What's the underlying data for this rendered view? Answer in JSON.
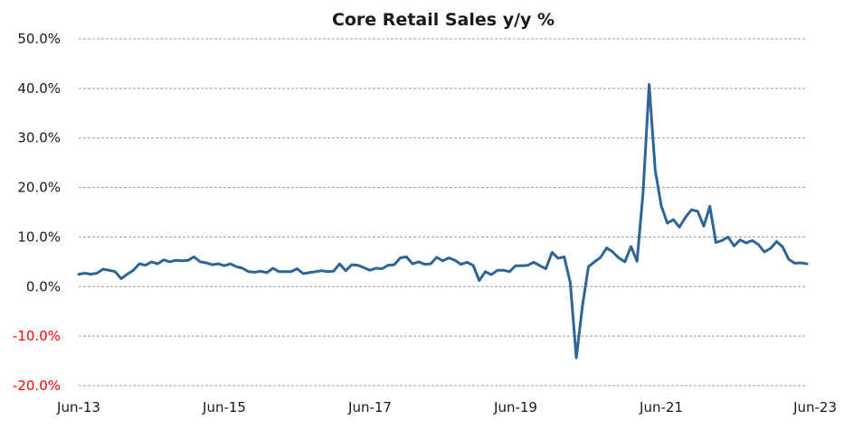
{
  "chart_data": {
    "type": "line",
    "title": "Core Retail Sales y/y %",
    "xlabel": "",
    "ylabel": "",
    "ylim": [
      -20,
      50
    ],
    "yticks": [
      {
        "value": 50,
        "label": "50.0%"
      },
      {
        "value": 40,
        "label": "40.0%"
      },
      {
        "value": 30,
        "label": "30.0%"
      },
      {
        "value": 20,
        "label": "20.0%"
      },
      {
        "value": 10,
        "label": "10.0%"
      },
      {
        "value": 0,
        "label": "0.0%"
      },
      {
        "value": -10,
        "label": "-10.0%"
      },
      {
        "value": -20,
        "label": "-20.0%"
      }
    ],
    "negative_tick_color": "#ff0000",
    "line_color": "#2e6496",
    "grid": true,
    "legend": "none",
    "x_start": "2013-06",
    "x_end": "2023-06",
    "xticks": [
      {
        "date": "2013-06",
        "label": "Jun-13"
      },
      {
        "date": "2015-06",
        "label": "Jun-15"
      },
      {
        "date": "2017-06",
        "label": "Jun-17"
      },
      {
        "date": "2019-06",
        "label": "Jun-19"
      },
      {
        "date": "2021-06",
        "label": "Jun-21"
      },
      {
        "date": "2023-06",
        "label": "Jun-23"
      }
    ],
    "series": [
      {
        "points": [
          [
            "2013-06",
            2.5
          ],
          [
            "2013-07",
            2.7
          ],
          [
            "2013-08",
            2.5
          ],
          [
            "2013-09",
            2.7
          ],
          [
            "2013-10",
            3.5
          ],
          [
            "2013-11",
            3.3
          ],
          [
            "2013-12",
            3.0
          ],
          [
            "2014-01",
            1.6
          ],
          [
            "2014-02",
            2.5
          ],
          [
            "2014-03",
            3.3
          ],
          [
            "2014-04",
            4.6
          ],
          [
            "2014-05",
            4.3
          ],
          [
            "2014-06",
            5.0
          ],
          [
            "2014-07",
            4.6
          ],
          [
            "2014-08",
            5.4
          ],
          [
            "2014-09",
            5.0
          ],
          [
            "2014-10",
            5.3
          ],
          [
            "2014-11",
            5.2
          ],
          [
            "2014-12",
            5.3
          ],
          [
            "2015-01",
            6.0
          ],
          [
            "2015-02",
            5.0
          ],
          [
            "2015-03",
            4.8
          ],
          [
            "2015-04",
            4.4
          ],
          [
            "2015-05",
            4.6
          ],
          [
            "2015-06",
            4.2
          ],
          [
            "2015-07",
            4.6
          ],
          [
            "2015-08",
            4.0
          ],
          [
            "2015-09",
            3.7
          ],
          [
            "2015-10",
            3.0
          ],
          [
            "2015-11",
            2.9
          ],
          [
            "2015-12",
            3.1
          ],
          [
            "2016-01",
            2.8
          ],
          [
            "2016-02",
            3.7
          ],
          [
            "2016-03",
            3.0
          ],
          [
            "2016-04",
            3.0
          ],
          [
            "2016-05",
            3.0
          ],
          [
            "2016-06",
            3.6
          ],
          [
            "2016-07",
            2.6
          ],
          [
            "2016-08",
            2.8
          ],
          [
            "2016-09",
            3.0
          ],
          [
            "2016-10",
            3.2
          ],
          [
            "2016-11",
            3.0
          ],
          [
            "2016-12",
            3.1
          ],
          [
            "2017-01",
            4.6
          ],
          [
            "2017-02",
            3.2
          ],
          [
            "2017-03",
            4.4
          ],
          [
            "2017-04",
            4.3
          ],
          [
            "2017-05",
            3.8
          ],
          [
            "2017-06",
            3.3
          ],
          [
            "2017-07",
            3.7
          ],
          [
            "2017-08",
            3.6
          ],
          [
            "2017-09",
            4.3
          ],
          [
            "2017-10",
            4.4
          ],
          [
            "2017-11",
            5.8
          ],
          [
            "2017-12",
            6.0
          ],
          [
            "2018-01",
            4.6
          ],
          [
            "2018-02",
            5.0
          ],
          [
            "2018-03",
            4.5
          ],
          [
            "2018-04",
            4.6
          ],
          [
            "2018-05",
            5.9
          ],
          [
            "2018-06",
            5.2
          ],
          [
            "2018-07",
            5.8
          ],
          [
            "2018-08",
            5.3
          ],
          [
            "2018-09",
            4.5
          ],
          [
            "2018-10",
            4.9
          ],
          [
            "2018-11",
            4.3
          ],
          [
            "2018-12",
            1.2
          ],
          [
            "2019-01",
            3.0
          ],
          [
            "2019-02",
            2.4
          ],
          [
            "2019-03",
            3.3
          ],
          [
            "2019-04",
            3.3
          ],
          [
            "2019-05",
            3.0
          ],
          [
            "2019-06",
            4.2
          ],
          [
            "2019-07",
            4.2
          ],
          [
            "2019-08",
            4.3
          ],
          [
            "2019-09",
            4.9
          ],
          [
            "2019-10",
            4.2
          ],
          [
            "2019-11",
            3.6
          ],
          [
            "2019-12",
            6.9
          ],
          [
            "2020-01",
            5.7
          ],
          [
            "2020-02",
            6.0
          ],
          [
            "2020-03",
            0.8
          ],
          [
            "2020-04",
            -14.4
          ],
          [
            "2020-05",
            -4.0
          ],
          [
            "2020-06",
            4.0
          ],
          [
            "2020-07",
            5.0
          ],
          [
            "2020-08",
            5.9
          ],
          [
            "2020-09",
            7.8
          ],
          [
            "2020-10",
            7.0
          ],
          [
            "2020-11",
            5.8
          ],
          [
            "2020-12",
            5.0
          ],
          [
            "2021-01",
            8.1
          ],
          [
            "2021-02",
            5.1
          ],
          [
            "2021-03",
            19.0
          ],
          [
            "2021-04",
            40.8
          ],
          [
            "2021-05",
            23.5
          ],
          [
            "2021-06",
            16.3
          ],
          [
            "2021-07",
            12.8
          ],
          [
            "2021-08",
            13.5
          ],
          [
            "2021-09",
            12.0
          ],
          [
            "2021-10",
            14.0
          ],
          [
            "2021-11",
            15.5
          ],
          [
            "2021-12",
            15.2
          ],
          [
            "2022-01",
            12.2
          ],
          [
            "2022-02",
            16.2
          ],
          [
            "2022-03",
            8.9
          ],
          [
            "2022-04",
            9.3
          ],
          [
            "2022-05",
            10.0
          ],
          [
            "2022-06",
            8.2
          ],
          [
            "2022-07",
            9.4
          ],
          [
            "2022-08",
            8.8
          ],
          [
            "2022-09",
            9.3
          ],
          [
            "2022-10",
            8.5
          ],
          [
            "2022-11",
            7.0
          ],
          [
            "2022-12",
            7.7
          ],
          [
            "2023-01",
            9.1
          ],
          [
            "2023-02",
            8.0
          ],
          [
            "2023-03",
            5.5
          ],
          [
            "2023-04",
            4.7
          ],
          [
            "2023-05",
            4.8
          ],
          [
            "2023-06",
            4.6
          ]
        ]
      }
    ]
  }
}
